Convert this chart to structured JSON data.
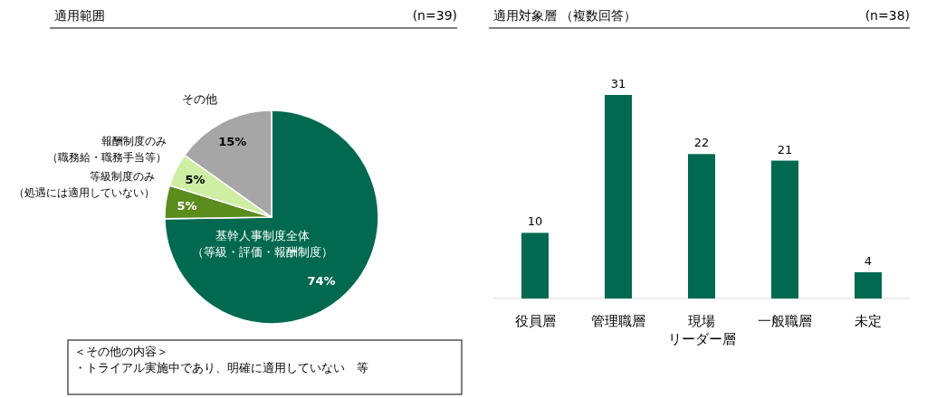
{
  "chart_data": [
    {
      "type": "pie",
      "title": "適用範囲",
      "subtitle": "(n=39)",
      "categories": [
        "基幹人事制度全体（等級・評価・報酬制度）",
        "等級制度のみ（処遇には適用していない）",
        "報酬制度のみ（職務給・職務手当等）",
        "その他"
      ],
      "values": [
        74,
        5,
        5,
        15
      ],
      "value_labels": [
        "74%",
        "5%",
        "5%",
        "15%"
      ],
      "colors": [
        "#00694f",
        "#5b8c1e",
        "#cdeea3",
        "#a6a6a6"
      ],
      "annotations": [
        "＜その他の内容＞",
        "・トライアル実施中であり、明確に適用していない　等"
      ]
    },
    {
      "type": "bar",
      "title": "適用対象層 （複数回答）",
      "subtitle": "(n=38)",
      "categories": [
        "役員層",
        "管理職層",
        "現場リーダー層",
        "一般職層",
        "未定"
      ],
      "values": [
        10,
        31,
        22,
        21,
        4
      ],
      "color": "#00694f",
      "data_labels": true
    }
  ]
}
